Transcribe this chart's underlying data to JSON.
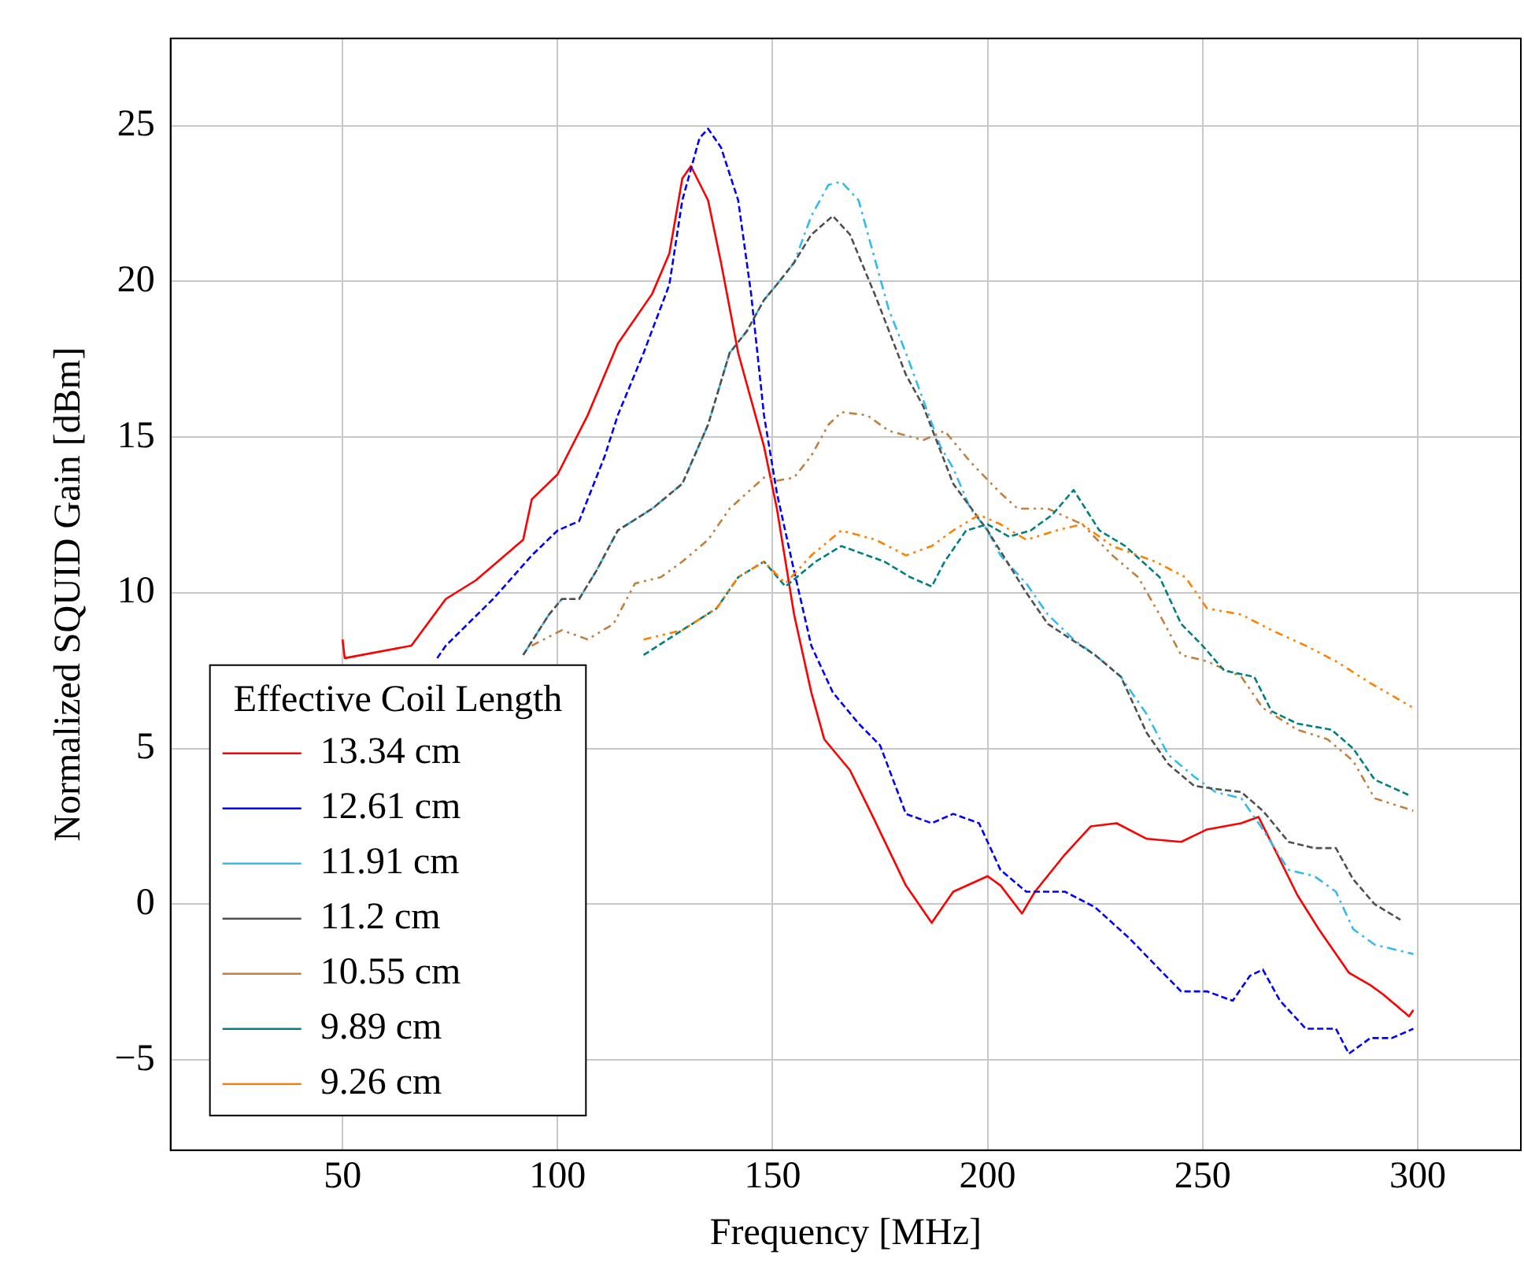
{
  "chart_data": {
    "type": "line",
    "xlabel": "Frequency [MHz]",
    "ylabel": "Normalized SQUID Gain [dBm]",
    "legend_title": "Effective Coil Length",
    "xlim": [
      10,
      324
    ],
    "ylim": [
      -7.9,
      27.8
    ],
    "xticks": [
      50,
      100,
      150,
      200,
      250,
      300
    ],
    "yticks": [
      -5,
      0,
      5,
      10,
      15,
      20,
      25
    ],
    "grid": true,
    "legend": "bottom left",
    "marker": "none",
    "series": [
      {
        "name": "13.34 cm",
        "color": "#ff0000",
        "line_style": "solid",
        "x": [
          50,
          50.5,
          66,
          74,
          81,
          92,
          94,
          100,
          107,
          114,
          122,
          126,
          129,
          131,
          135,
          138,
          142,
          148,
          151,
          155,
          159,
          162,
          168,
          173,
          181,
          187,
          192,
          200,
          203,
          208,
          211,
          218,
          224,
          230,
          237,
          245,
          251,
          259,
          263,
          267,
          272,
          277,
          284,
          289,
          292,
          298,
          299
        ],
        "values": [
          8.5,
          7.9,
          8.3,
          9.8,
          10.4,
          11.7,
          13,
          13.8,
          15.7,
          18,
          19.6,
          20.9,
          23.3,
          23.7,
          22.6,
          20.6,
          17.7,
          14.7,
          12.7,
          9.3,
          6.8,
          5.3,
          4.3,
          2.9,
          0.6,
          -0.6,
          0.4,
          0.9,
          0.6,
          -0.3,
          0.4,
          1.6,
          2.5,
          2.6,
          2.1,
          2.0,
          2.4,
          2.6,
          2.8,
          1.7,
          0.3,
          -0.8,
          -2.2,
          -2.6,
          -2.9,
          -3.6,
          -3.4
        ]
      },
      {
        "name": "12.61 cm",
        "color": "#0000ff",
        "line_style": "dashed",
        "x": [
          72,
          74,
          85,
          94,
          100,
          105,
          111,
          114,
          120,
          126,
          129,
          133,
          135,
          138,
          142,
          145,
          148,
          151,
          155,
          159,
          164,
          170,
          175,
          181,
          187,
          192,
          198,
          203,
          209,
          218,
          225,
          233,
          240,
          245,
          251,
          257,
          261,
          264,
          268,
          274,
          281,
          284,
          289,
          294,
          299
        ],
        "values": [
          7.9,
          8.3,
          9.8,
          11.2,
          12,
          12.3,
          14.4,
          15.7,
          17.7,
          19.9,
          22.6,
          24.6,
          24.9,
          24.3,
          22.6,
          19.6,
          15.7,
          13.2,
          10.7,
          8.3,
          6.8,
          5.8,
          5.1,
          2.9,
          2.6,
          2.9,
          2.6,
          1.1,
          0.4,
          0.4,
          -0.1,
          -1.1,
          -2.1,
          -2.8,
          -2.8,
          -3.1,
          -2.3,
          -2.1,
          -3.1,
          -4.0,
          -4.0,
          -4.8,
          -4.3,
          -4.3,
          -4.0
        ]
      },
      {
        "name": "11.91 cm",
        "color": "#33bbee",
        "line_style": "dashdot",
        "x": [
          92,
          98,
          101,
          105,
          109,
          114,
          122,
          129,
          135,
          140,
          144,
          148,
          151,
          155,
          159,
          163,
          166,
          170,
          174,
          177,
          181,
          185,
          189,
          192,
          196,
          200,
          203,
          209,
          214,
          220,
          225,
          231,
          237,
          242,
          248,
          253,
          259,
          264,
          270,
          276,
          281,
          285,
          290,
          299
        ],
        "values": [
          8.0,
          9.3,
          9.8,
          9.8,
          10.7,
          12,
          12.7,
          13.5,
          15.4,
          17.7,
          18.4,
          19.4,
          19.9,
          20.6,
          22.1,
          23.1,
          23.2,
          22.6,
          20.6,
          19.1,
          17.7,
          16.2,
          14.7,
          14,
          12.7,
          12,
          11.2,
          10.3,
          9.3,
          8.5,
          8.0,
          7.3,
          6.1,
          4.8,
          4.1,
          3.6,
          3.4,
          2.4,
          1.1,
          0.9,
          0.4,
          -0.8,
          -1.3,
          -1.6
        ]
      },
      {
        "name": "11.2 cm",
        "color": "#505050",
        "line_style": "dashed",
        "x": [
          92,
          98,
          101,
          105,
          109,
          114,
          122,
          129,
          135,
          140,
          144,
          148,
          151,
          155,
          159,
          164,
          168,
          174,
          181,
          185,
          192,
          200,
          209,
          214,
          225,
          231,
          237,
          242,
          248,
          253,
          259,
          264,
          270,
          276,
          281,
          285,
          290,
          296
        ],
        "values": [
          8.0,
          9.3,
          9.8,
          9.8,
          10.7,
          12,
          12.7,
          13.5,
          15.4,
          17.7,
          18.4,
          19.4,
          19.9,
          20.6,
          21.5,
          22.1,
          21.5,
          19.5,
          17,
          16,
          13.5,
          12,
          10,
          9,
          8.0,
          7.3,
          5.5,
          4.5,
          3.8,
          3.7,
          3.6,
          3.0,
          2.0,
          1.8,
          1.8,
          0.8,
          0.0,
          -0.5
        ]
      },
      {
        "name": "10.55 cm",
        "color": "#c08040",
        "line_style": "dashdotdot",
        "x": [
          94,
          101,
          107,
          113,
          118,
          124,
          129,
          135,
          140,
          148,
          151,
          155,
          159,
          163,
          166,
          172,
          177,
          185,
          190,
          196,
          203,
          207,
          214,
          222,
          229,
          235,
          240,
          245,
          251,
          259,
          264,
          272,
          279,
          285,
          290,
          299
        ],
        "values": [
          8.3,
          8.8,
          8.5,
          9.0,
          10.3,
          10.5,
          11,
          11.7,
          12.7,
          13.7,
          13.6,
          13.7,
          14.4,
          15.4,
          15.8,
          15.7,
          15.2,
          14.9,
          15.2,
          14.2,
          13.2,
          12.7,
          12.7,
          12.2,
          11.2,
          10.5,
          9.3,
          8.0,
          7.8,
          7.3,
          6.3,
          5.6,
          5.3,
          4.6,
          3.4,
          3.0
        ]
      },
      {
        "name": "9.89 cm",
        "color": "#008080",
        "line_style": "dashed",
        "x": [
          120,
          129,
          137,
          142,
          148,
          153,
          160,
          166,
          170,
          176,
          182,
          187,
          190,
          195,
          200,
          205,
          210,
          215,
          220,
          226,
          232,
          240,
          245,
          250,
          255,
          262,
          266,
          272,
          280,
          285,
          290,
          298
        ],
        "values": [
          8.0,
          8.8,
          9.5,
          10.5,
          11,
          10.2,
          11,
          11.5,
          11.3,
          11,
          10.5,
          10.2,
          11,
          12,
          12.2,
          11.8,
          12,
          12.5,
          13.3,
          12,
          11.5,
          10.5,
          9,
          8.3,
          7.5,
          7.3,
          6.2,
          5.8,
          5.6,
          5,
          4,
          3.5
        ]
      },
      {
        "name": "9.26 cm",
        "color": "#ff8000",
        "line_style": "dashdotdot",
        "x": [
          120,
          129,
          137,
          142,
          148,
          153,
          159,
          166,
          174,
          181,
          187,
          192,
          198,
          203,
          209,
          216,
          222,
          229,
          239,
          246,
          251,
          259,
          266,
          274,
          281,
          289,
          299
        ],
        "values": [
          8.5,
          8.8,
          9.5,
          10.5,
          11,
          10.3,
          11.2,
          12,
          11.7,
          11.2,
          11.5,
          12,
          12.5,
          12.2,
          11.7,
          12,
          12.2,
          11.5,
          11,
          10.5,
          9.5,
          9.3,
          8.8,
          8.3,
          7.8,
          7.1,
          6.3
        ]
      }
    ]
  }
}
